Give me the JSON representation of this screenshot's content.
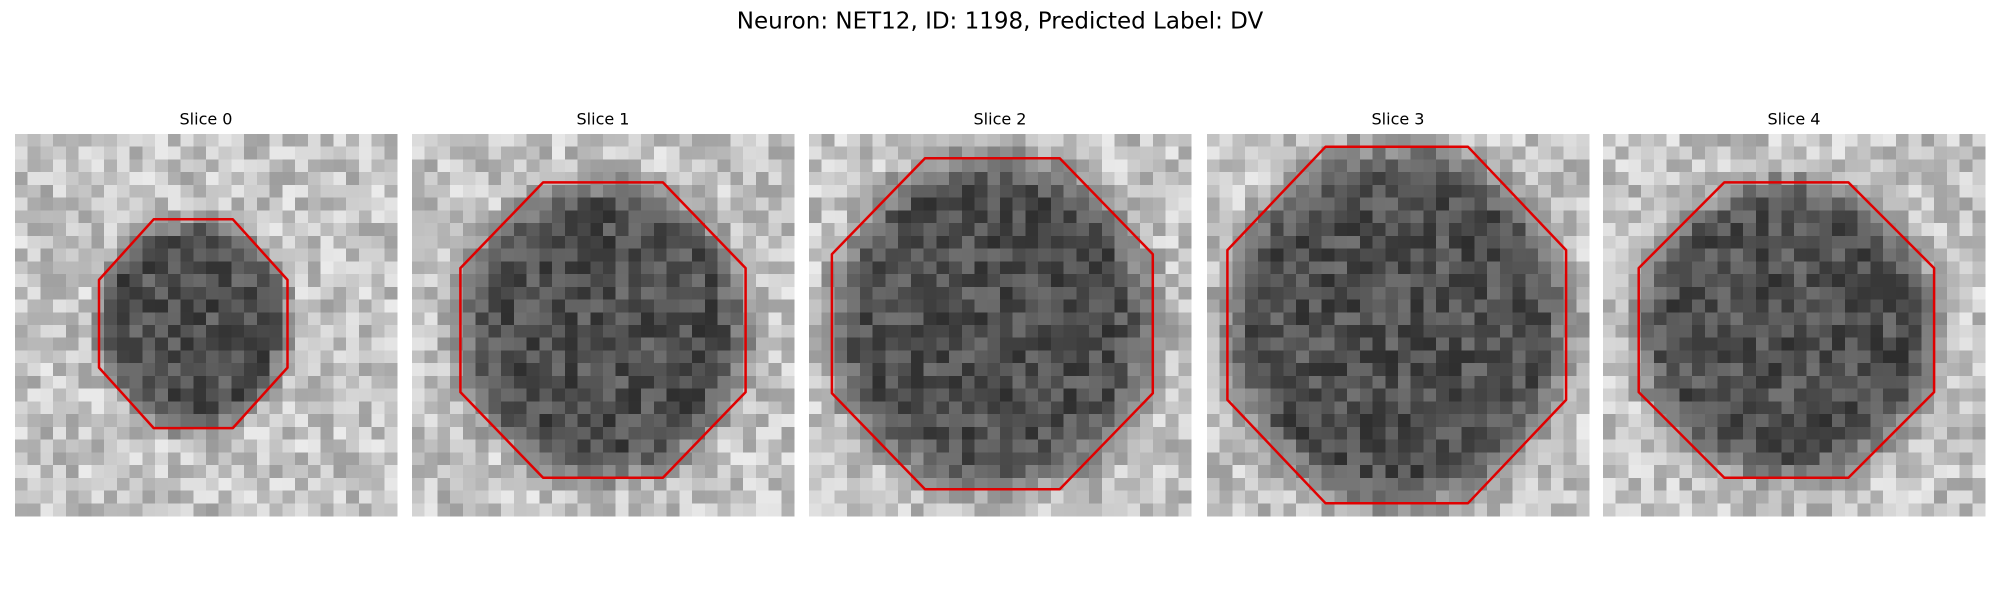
{
  "title": "Neuron: NET12, ID: 1198, Predicted Label: DV",
  "panels": [
    {
      "title": "Slice 0"
    },
    {
      "title": "Slice 1"
    },
    {
      "title": "Slice 2"
    },
    {
      "title": "Slice 3"
    },
    {
      "title": "Slice 4"
    }
  ]
}
